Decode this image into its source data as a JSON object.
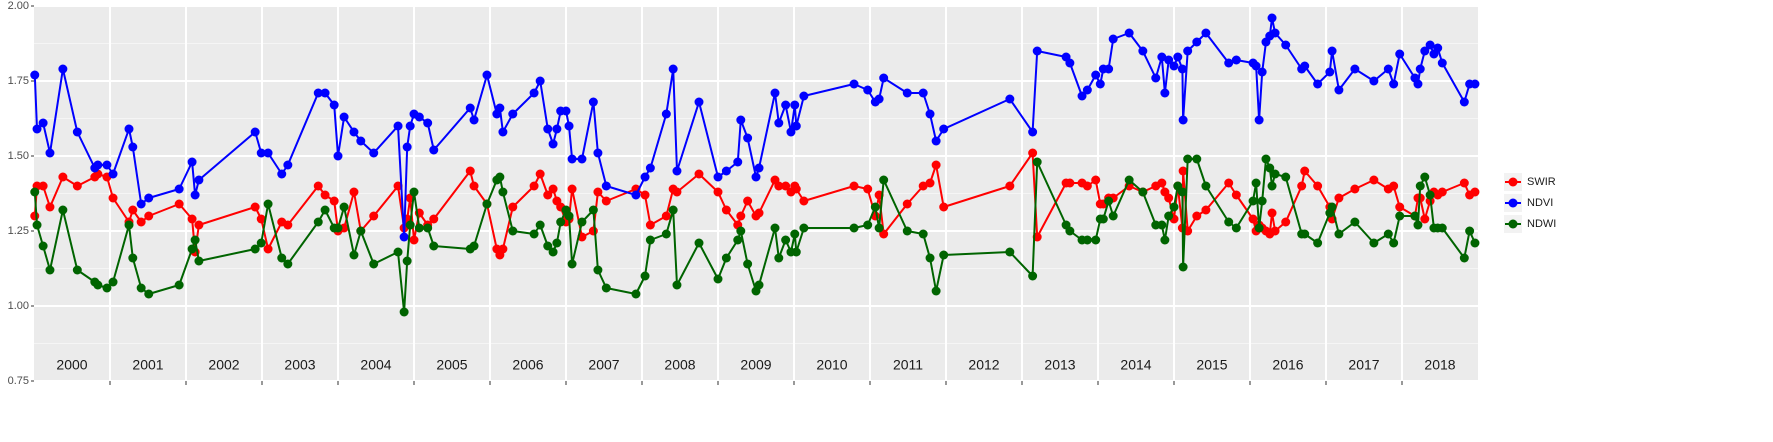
{
  "chart_data": {
    "type": "line",
    "x": [
      2000.01,
      2000.04,
      2000.12,
      2000.21,
      2000.38,
      2000.57,
      2000.8,
      2000.84,
      2000.96,
      2001.04,
      2001.25,
      2001.3,
      2001.41,
      2001.51,
      2001.91,
      2002.08,
      2002.12,
      2002.17,
      2002.91,
      2002.99,
      2003.08,
      2003.26,
      2003.34,
      2003.74,
      2003.83,
      2003.95,
      2004.0,
      2004.08,
      2004.21,
      2004.3,
      2004.47,
      2004.79,
      2004.87,
      2004.91,
      2004.95,
      2005.0,
      2005.07,
      2005.18,
      2005.26,
      2005.74,
      2005.79,
      2005.96,
      2006.09,
      2006.13,
      2006.17,
      2006.3,
      2006.58,
      2006.66,
      2006.76,
      2006.83,
      2006.88,
      2006.93,
      2007.0,
      2007.04,
      2007.08,
      2007.21,
      2007.36,
      2007.42,
      2007.53,
      2007.92,
      2008.04,
      2008.11,
      2008.32,
      2008.41,
      2008.46,
      2008.75,
      2009.0,
      2009.11,
      2009.26,
      2009.3,
      2009.39,
      2009.5,
      2009.54,
      2009.75,
      2009.8,
      2009.89,
      2009.96,
      2010.01,
      2010.03,
      2010.13,
      2010.79,
      2010.97,
      2011.07,
      2011.12,
      2011.18,
      2011.49,
      2011.7,
      2011.79,
      2011.87,
      2011.97,
      2012.84,
      2013.14,
      2013.2,
      2013.58,
      2013.63,
      2013.79,
      2013.86,
      2013.97,
      2014.03,
      2014.07,
      2014.14,
      2014.2,
      2014.41,
      2014.59,
      2014.76,
      2014.84,
      2014.88,
      2014.93,
      2015.0,
      2015.05,
      2015.11,
      2015.12,
      2015.18,
      2015.3,
      2015.42,
      2015.72,
      2015.82,
      2016.04,
      2016.08,
      2016.12,
      2016.16,
      2016.21,
      2016.26,
      2016.29,
      2016.33,
      2016.47,
      2016.68,
      2016.72,
      2016.89,
      2017.05,
      2017.08,
      2017.17,
      2017.38,
      2017.63,
      2017.82,
      2017.89,
      2017.97,
      2018.17,
      2018.21,
      2018.24,
      2018.3,
      2018.37,
      2018.42,
      2018.47,
      2018.53,
      2018.82,
      2018.89,
      2018.96
    ],
    "series": [
      {
        "name": "SWIR",
        "color": "#ff0000",
        "values": [
          1.3,
          1.4,
          1.4,
          1.33,
          1.43,
          1.4,
          1.43,
          1.44,
          1.43,
          1.36,
          1.28,
          1.32,
          1.28,
          1.3,
          1.34,
          1.29,
          1.18,
          1.27,
          1.33,
          1.29,
          1.19,
          1.28,
          1.27,
          1.4,
          1.37,
          1.35,
          1.25,
          1.26,
          1.38,
          1.25,
          1.3,
          1.4,
          1.26,
          1.29,
          1.36,
          1.22,
          1.31,
          1.27,
          1.29,
          1.45,
          1.4,
          1.34,
          1.19,
          1.17,
          1.19,
          1.33,
          1.4,
          1.44,
          1.37,
          1.39,
          1.35,
          1.33,
          1.28,
          1.29,
          1.39,
          1.23,
          1.25,
          1.38,
          1.35,
          1.39,
          1.37,
          1.27,
          1.3,
          1.39,
          1.38,
          1.44,
          1.38,
          1.32,
          1.27,
          1.3,
          1.35,
          1.3,
          1.31,
          1.42,
          1.4,
          1.4,
          1.38,
          1.4,
          1.39,
          1.35,
          1.4,
          1.39,
          1.3,
          1.37,
          1.24,
          1.34,
          1.4,
          1.41,
          1.47,
          1.33,
          1.4,
          1.51,
          1.23,
          1.41,
          1.41,
          1.41,
          1.4,
          1.42,
          1.34,
          1.34,
          1.36,
          1.36,
          1.4,
          1.38,
          1.4,
          1.41,
          1.38,
          1.36,
          1.29,
          1.4,
          1.26,
          1.45,
          1.25,
          1.3,
          1.32,
          1.41,
          1.37,
          1.29,
          1.25,
          1.27,
          1.26,
          1.25,
          1.24,
          1.31,
          1.25,
          1.28,
          1.4,
          1.45,
          1.4,
          1.33,
          1.29,
          1.36,
          1.39,
          1.42,
          1.39,
          1.4,
          1.33,
          1.3,
          1.36,
          1.36,
          1.29,
          1.35,
          1.38,
          1.37,
          1.38,
          1.41,
          1.37,
          1.38
        ]
      },
      {
        "name": "NDVI",
        "color": "#0000ff",
        "values": [
          1.77,
          1.59,
          1.61,
          1.51,
          1.79,
          1.58,
          1.46,
          1.47,
          1.47,
          1.44,
          1.59,
          1.53,
          1.34,
          1.36,
          1.39,
          1.48,
          1.37,
          1.42,
          1.58,
          1.51,
          1.51,
          1.44,
          1.47,
          1.71,
          1.71,
          1.67,
          1.5,
          1.63,
          1.58,
          1.55,
          1.51,
          1.6,
          1.23,
          1.53,
          1.6,
          1.64,
          1.63,
          1.61,
          1.52,
          1.66,
          1.62,
          1.77,
          1.64,
          1.66,
          1.58,
          1.64,
          1.71,
          1.75,
          1.59,
          1.54,
          1.59,
          1.65,
          1.65,
          1.6,
          1.49,
          1.49,
          1.68,
          1.51,
          1.4,
          1.37,
          1.43,
          1.46,
          1.64,
          1.79,
          1.45,
          1.68,
          1.43,
          1.45,
          1.48,
          1.62,
          1.56,
          1.43,
          1.46,
          1.71,
          1.61,
          1.67,
          1.58,
          1.67,
          1.6,
          1.7,
          1.74,
          1.72,
          1.68,
          1.69,
          1.76,
          1.71,
          1.71,
          1.64,
          1.55,
          1.59,
          1.69,
          1.58,
          1.85,
          1.83,
          1.81,
          1.7,
          1.72,
          1.77,
          1.74,
          1.79,
          1.79,
          1.89,
          1.91,
          1.85,
          1.76,
          1.83,
          1.71,
          1.82,
          1.8,
          1.83,
          1.79,
          1.62,
          1.85,
          1.88,
          1.91,
          1.81,
          1.82,
          1.81,
          1.8,
          1.62,
          1.78,
          1.88,
          1.9,
          1.96,
          1.91,
          1.87,
          1.79,
          1.8,
          1.74,
          1.78,
          1.85,
          1.72,
          1.79,
          1.75,
          1.79,
          1.74,
          1.84,
          1.76,
          1.74,
          1.79,
          1.85,
          1.87,
          1.84,
          1.86,
          1.81,
          1.68,
          1.74,
          1.74
        ]
      },
      {
        "name": "NDWI",
        "color": "#006400",
        "values": [
          1.38,
          1.27,
          1.2,
          1.12,
          1.32,
          1.12,
          1.08,
          1.07,
          1.06,
          1.08,
          1.27,
          1.16,
          1.06,
          1.04,
          1.07,
          1.19,
          1.22,
          1.15,
          1.19,
          1.21,
          1.34,
          1.16,
          1.14,
          1.28,
          1.32,
          1.26,
          1.26,
          1.33,
          1.17,
          1.25,
          1.14,
          1.18,
          0.98,
          1.15,
          1.27,
          1.38,
          1.26,
          1.26,
          1.2,
          1.19,
          1.2,
          1.34,
          1.42,
          1.43,
          1.38,
          1.25,
          1.24,
          1.27,
          1.2,
          1.18,
          1.21,
          1.28,
          1.32,
          1.3,
          1.14,
          1.28,
          1.32,
          1.12,
          1.06,
          1.04,
          1.1,
          1.22,
          1.24,
          1.32,
          1.07,
          1.21,
          1.09,
          1.16,
          1.22,
          1.25,
          1.14,
          1.05,
          1.07,
          1.26,
          1.16,
          1.22,
          1.18,
          1.24,
          1.18,
          1.26,
          1.26,
          1.27,
          1.33,
          1.26,
          1.42,
          1.25,
          1.24,
          1.16,
          1.05,
          1.17,
          1.18,
          1.1,
          1.48,
          1.27,
          1.25,
          1.22,
          1.22,
          1.22,
          1.29,
          1.29,
          1.35,
          1.3,
          1.42,
          1.38,
          1.27,
          1.27,
          1.22,
          1.3,
          1.33,
          1.4,
          1.38,
          1.13,
          1.49,
          1.49,
          1.4,
          1.28,
          1.26,
          1.35,
          1.41,
          1.26,
          1.35,
          1.49,
          1.46,
          1.4,
          1.44,
          1.43,
          1.24,
          1.24,
          1.21,
          1.31,
          1.33,
          1.24,
          1.28,
          1.21,
          1.24,
          1.21,
          1.3,
          1.3,
          1.27,
          1.4,
          1.43,
          1.37,
          1.26,
          1.26,
          1.26,
          1.16,
          1.25,
          1.21
        ]
      }
    ],
    "xlim": [
      2000,
      2019
    ],
    "xticks": [
      {
        "value": 2000.5,
        "label": "2000"
      },
      {
        "value": 2001.5,
        "label": "2001"
      },
      {
        "value": 2002.5,
        "label": "2002"
      },
      {
        "value": 2003.5,
        "label": "2003"
      },
      {
        "value": 2004.5,
        "label": "2004"
      },
      {
        "value": 2005.5,
        "label": "2005"
      },
      {
        "value": 2006.5,
        "label": "2006"
      },
      {
        "value": 2007.5,
        "label": "2007"
      },
      {
        "value": 2008.5,
        "label": "2008"
      },
      {
        "value": 2009.5,
        "label": "2009"
      },
      {
        "value": 2010.5,
        "label": "2010"
      },
      {
        "value": 2011.5,
        "label": "2011"
      },
      {
        "value": 2012.5,
        "label": "2012"
      },
      {
        "value": 2013.5,
        "label": "2013"
      },
      {
        "value": 2014.5,
        "label": "2014"
      },
      {
        "value": 2015.5,
        "label": "2015"
      },
      {
        "value": 2016.5,
        "label": "2016"
      },
      {
        "value": 2017.5,
        "label": "2017"
      },
      {
        "value": 2018.5,
        "label": "2018"
      }
    ],
    "xgrid": [
      2001,
      2002,
      2003,
      2004,
      2005,
      2006,
      2007,
      2008,
      2009,
      2010,
      2011,
      2012,
      2013,
      2014,
      2015,
      2016,
      2017,
      2018
    ],
    "ylim": [
      0.75,
      2.0
    ],
    "yticks": [
      0.75,
      {
        "value": 1,
        "label": "1.00"
      },
      1.25,
      {
        "value": 1.5,
        "label": "1.50"
      },
      1.75,
      {
        "value": 2,
        "label": "2.00"
      }
    ],
    "grid": true,
    "legend": "right"
  }
}
